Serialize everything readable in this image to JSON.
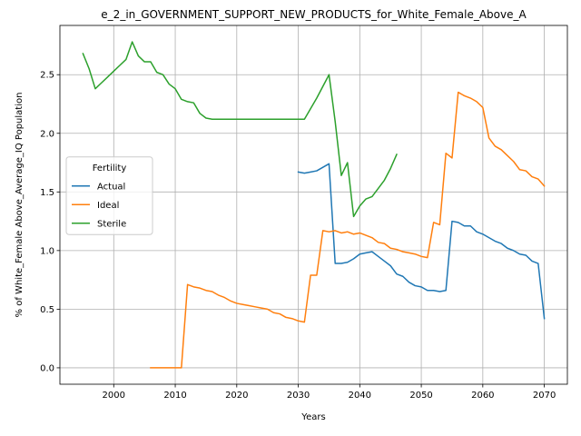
{
  "chart_data": {
    "type": "line",
    "title": "e_2_in_GOVERNMENT_SUPPORT_NEW_PRODUCTS_for_White_Female_Above_A",
    "xlabel": "Years",
    "ylabel": "% of White_Female Above_Average_IQ Population",
    "xlim": [
      1991.25,
      2073.75
    ],
    "ylim": [
      -0.14,
      2.92
    ],
    "x_ticks": [
      2000,
      2010,
      2020,
      2030,
      2040,
      2050,
      2060,
      2070
    ],
    "y_ticks": [
      0.0,
      0.5,
      1.0,
      1.5,
      2.0,
      2.5
    ],
    "grid": true,
    "legend": {
      "title": "Fertility",
      "placement": "center-left"
    },
    "series": [
      {
        "name": "Actual",
        "color": "#1f77b4",
        "points": [
          [
            2030,
            1.67
          ],
          [
            2031,
            1.66
          ],
          [
            2032,
            1.67
          ],
          [
            2033,
            1.68
          ],
          [
            2034,
            1.71
          ],
          [
            2035,
            1.74
          ],
          [
            2036,
            0.89
          ],
          [
            2037,
            0.89
          ],
          [
            2038,
            0.9
          ],
          [
            2039,
            0.93
          ],
          [
            2040,
            0.97
          ],
          [
            2041,
            0.98
          ],
          [
            2042,
            0.99
          ],
          [
            2043,
            0.95
          ],
          [
            2044,
            0.91
          ],
          [
            2045,
            0.87
          ],
          [
            2046,
            0.8
          ],
          [
            2047,
            0.78
          ],
          [
            2048,
            0.73
          ],
          [
            2049,
            0.7
          ],
          [
            2050,
            0.69
          ],
          [
            2051,
            0.66
          ],
          [
            2052,
            0.66
          ],
          [
            2053,
            0.65
          ],
          [
            2054,
            0.66
          ],
          [
            2055,
            1.25
          ],
          [
            2056,
            1.24
          ],
          [
            2057,
            1.21
          ],
          [
            2058,
            1.21
          ],
          [
            2059,
            1.16
          ],
          [
            2060,
            1.14
          ],
          [
            2061,
            1.11
          ],
          [
            2062,
            1.08
          ],
          [
            2063,
            1.06
          ],
          [
            2064,
            1.02
          ],
          [
            2065,
            1.0
          ],
          [
            2066,
            0.97
          ],
          [
            2067,
            0.96
          ],
          [
            2068,
            0.91
          ],
          [
            2069,
            0.89
          ],
          [
            2070,
            0.42
          ]
        ]
      },
      {
        "name": "Ideal",
        "color": "#ff7f0e",
        "points": [
          [
            2006,
            0.0
          ],
          [
            2007,
            0.0
          ],
          [
            2008,
            0.0
          ],
          [
            2009,
            0.0
          ],
          [
            2010,
            0.0
          ],
          [
            2011,
            0.0
          ],
          [
            2012,
            0.71
          ],
          [
            2013,
            0.69
          ],
          [
            2014,
            0.68
          ],
          [
            2015,
            0.66
          ],
          [
            2016,
            0.65
          ],
          [
            2017,
            0.62
          ],
          [
            2018,
            0.6
          ],
          [
            2019,
            0.57
          ],
          [
            2020,
            0.55
          ],
          [
            2021,
            0.54
          ],
          [
            2022,
            0.53
          ],
          [
            2023,
            0.52
          ],
          [
            2024,
            0.51
          ],
          [
            2025,
            0.5
          ],
          [
            2026,
            0.47
          ],
          [
            2027,
            0.46
          ],
          [
            2028,
            0.43
          ],
          [
            2029,
            0.42
          ],
          [
            2030,
            0.4
          ],
          [
            2031,
            0.39
          ],
          [
            2032,
            0.79
          ],
          [
            2033,
            0.79
          ],
          [
            2034,
            1.17
          ],
          [
            2035,
            1.16
          ],
          [
            2036,
            1.17
          ],
          [
            2037,
            1.15
          ],
          [
            2038,
            1.16
          ],
          [
            2039,
            1.14
          ],
          [
            2040,
            1.15
          ],
          [
            2041,
            1.13
          ],
          [
            2042,
            1.11
          ],
          [
            2043,
            1.07
          ],
          [
            2044,
            1.06
          ],
          [
            2045,
            1.02
          ],
          [
            2046,
            1.01
          ],
          [
            2047,
            0.99
          ],
          [
            2048,
            0.98
          ],
          [
            2049,
            0.97
          ],
          [
            2050,
            0.95
          ],
          [
            2051,
            0.94
          ],
          [
            2052,
            1.24
          ],
          [
            2053,
            1.22
          ],
          [
            2054,
            1.83
          ],
          [
            2055,
            1.79
          ],
          [
            2056,
            2.35
          ],
          [
            2057,
            2.32
          ],
          [
            2058,
            2.3
          ],
          [
            2059,
            2.27
          ],
          [
            2060,
            2.22
          ],
          [
            2061,
            1.96
          ],
          [
            2062,
            1.89
          ],
          [
            2063,
            1.86
          ],
          [
            2064,
            1.81
          ],
          [
            2065,
            1.76
          ],
          [
            2066,
            1.69
          ],
          [
            2067,
            1.68
          ],
          [
            2068,
            1.63
          ],
          [
            2069,
            1.61
          ],
          [
            2070,
            1.55
          ]
        ]
      },
      {
        "name": "Sterile",
        "color": "#2ca02c",
        "points": [
          [
            1995,
            2.68
          ],
          [
            1996,
            2.55
          ],
          [
            1997,
            2.38
          ],
          [
            1998,
            2.43
          ],
          [
            1999,
            2.48
          ],
          [
            2000,
            2.53
          ],
          [
            2001,
            2.58
          ],
          [
            2002,
            2.63
          ],
          [
            2003,
            2.78
          ],
          [
            2004,
            2.66
          ],
          [
            2005,
            2.61
          ],
          [
            2006,
            2.61
          ],
          [
            2007,
            2.52
          ],
          [
            2008,
            2.5
          ],
          [
            2009,
            2.42
          ],
          [
            2010,
            2.38
          ],
          [
            2011,
            2.29
          ],
          [
            2012,
            2.27
          ],
          [
            2013,
            2.26
          ],
          [
            2014,
            2.17
          ],
          [
            2015,
            2.13
          ],
          [
            2016,
            2.12
          ],
          [
            2017,
            2.12
          ],
          [
            2018,
            2.12
          ],
          [
            2019,
            2.12
          ],
          [
            2020,
            2.12
          ],
          [
            2021,
            2.12
          ],
          [
            2022,
            2.12
          ],
          [
            2023,
            2.12
          ],
          [
            2024,
            2.12
          ],
          [
            2025,
            2.12
          ],
          [
            2026,
            2.12
          ],
          [
            2027,
            2.12
          ],
          [
            2028,
            2.12
          ],
          [
            2029,
            2.12
          ],
          [
            2030,
            2.12
          ],
          [
            2031,
            2.12
          ],
          [
            2032,
            2.21
          ],
          [
            2033,
            2.3
          ],
          [
            2034,
            2.4
          ],
          [
            2035,
            2.5
          ],
          [
            2036,
            2.1
          ],
          [
            2037,
            1.64
          ],
          [
            2038,
            1.75
          ],
          [
            2039,
            1.29
          ],
          [
            2040,
            1.38
          ],
          [
            2041,
            1.44
          ],
          [
            2042,
            1.46
          ],
          [
            2043,
            1.53
          ],
          [
            2044,
            1.6
          ],
          [
            2045,
            1.7
          ],
          [
            2046,
            1.82
          ]
        ]
      }
    ]
  }
}
